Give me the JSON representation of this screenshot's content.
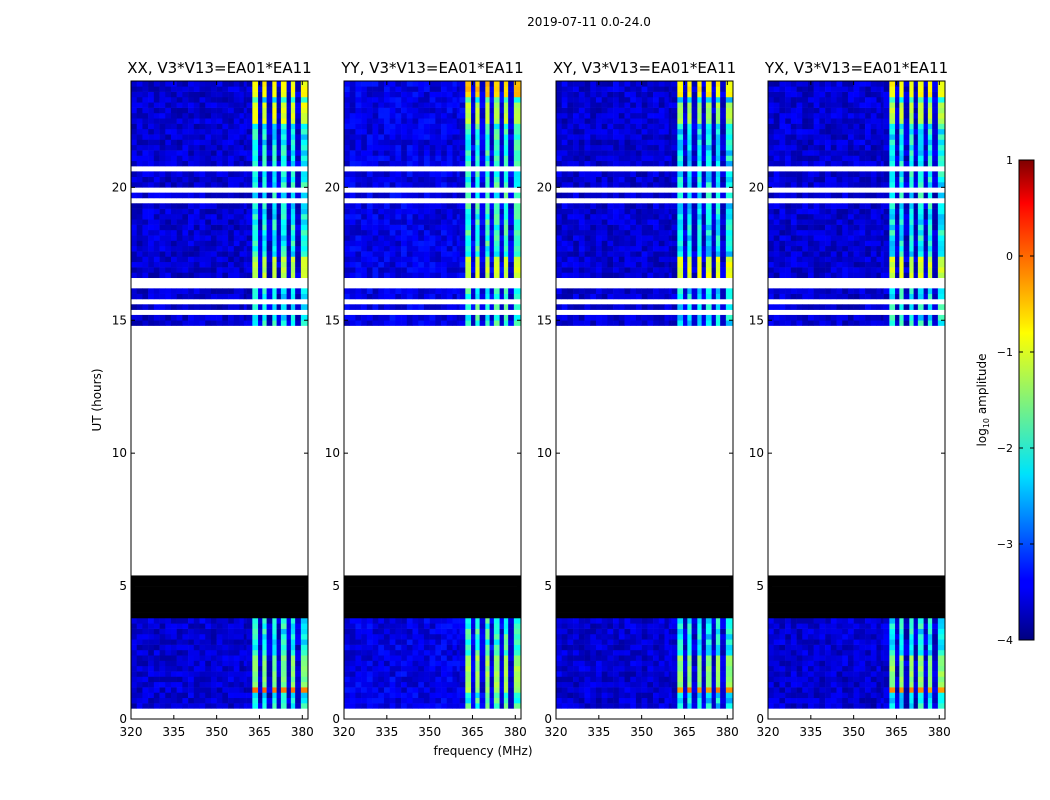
{
  "suptitle": "2019-07-11 0.0-24.0",
  "shared": {
    "xlabel": "frequency (MHz)",
    "ylabel": "UT (hours)",
    "xlim": [
      320,
      382
    ],
    "ylim": [
      0,
      24
    ],
    "xticks": [
      320,
      335,
      350,
      365,
      380
    ],
    "yticks": [
      0,
      5,
      10,
      15,
      20
    ],
    "channel_edges_mhz": [
      320,
      322,
      324,
      326,
      328,
      330,
      332,
      334,
      336,
      338,
      340,
      342,
      344,
      346,
      348,
      350,
      352,
      354,
      356,
      358,
      359.5,
      360.5,
      362.5,
      364.5,
      366,
      367.5,
      369.5,
      371,
      372.5,
      374.5,
      376,
      377.5,
      379.5,
      382
    ],
    "flagged_rows_ut": [
      [
        0.08,
        0.12
      ],
      [
        0.3,
        0.36
      ],
      [
        0.52,
        0.58
      ],
      [
        0.72,
        0.78
      ],
      [
        1.0,
        1.06
      ],
      [
        1.32,
        1.48
      ],
      [
        1.98,
        2.04
      ],
      [
        2.38,
        2.46
      ],
      [
        2.58,
        2.64
      ],
      [
        2.92,
        2.98
      ],
      [
        3.12,
        3.18
      ],
      [
        3.32,
        3.38
      ],
      [
        3.55,
        3.61
      ],
      [
        3.78,
        3.84
      ],
      [
        4.38,
        4.5
      ],
      [
        5.35,
        14.75
      ],
      [
        14.93,
        15.05
      ],
      [
        15.2,
        15.38
      ],
      [
        15.62,
        15.85
      ],
      [
        16.15,
        16.5
      ],
      [
        17.3,
        17.38
      ],
      [
        17.7,
        17.78
      ],
      [
        17.98,
        18.04
      ],
      [
        18.2,
        18.26
      ],
      [
        18.75,
        18.8
      ],
      [
        19.45,
        19.6
      ],
      [
        19.85,
        20.05
      ],
      [
        20.3,
        20.45
      ],
      [
        20.68,
        20.76
      ],
      [
        21.02,
        21.08
      ],
      [
        21.32,
        21.38
      ],
      [
        21.58,
        21.64
      ],
      [
        21.96,
        22.04
      ],
      [
        22.3,
        22.42
      ],
      [
        23.4,
        23.48
      ],
      [
        23.72,
        23.86
      ]
    ],
    "black_rows_ut": [
      [
        4.5,
        5.35
      ],
      [
        3.84,
        4.38
      ]
    ],
    "rfi_time_ranges_ut": [
      [
        1.05,
        2.4
      ],
      [
        16.6,
        17.4
      ],
      [
        22.3,
        23.2
      ],
      [
        23.4,
        24.0
      ]
    ]
  },
  "colorbar": {
    "label": "log",
    "label_sub": "10",
    "label_rest": " amplitude",
    "range": [
      -4,
      1
    ],
    "ticks": [
      {
        "value": 1,
        "label": "1"
      },
      {
        "value": 0,
        "label": "0"
      },
      {
        "value": -1,
        "label": "−1"
      },
      {
        "value": -2,
        "label": "−2"
      },
      {
        "value": -3,
        "label": "−3"
      },
      {
        "value": -4,
        "label": "−4"
      }
    ]
  },
  "chart_data": [
    {
      "type": "heatmap",
      "title": "XX, V3*V13=EA01*EA11",
      "background_log_amp": -3.6,
      "rfi_band_log_amp": -2.1,
      "burst_values": [
        {
          "ut_range": [
            1.05,
            1.3
          ],
          "log_amp": -0.2
        },
        {
          "ut_range": [
            1.3,
            2.4
          ],
          "log_amp": -1.5
        },
        {
          "ut_range": [
            16.6,
            17.4
          ],
          "log_amp": -1.2
        },
        {
          "ut_range": [
            22.3,
            23.2
          ],
          "log_amp": -1.0
        },
        {
          "ut_range": [
            23.4,
            24.0
          ],
          "log_amp": -0.9
        }
      ],
      "rfi_bands_mhz": [
        [
          362.5,
          364.5
        ],
        [
          366,
          367.5
        ],
        [
          369.5,
          371
        ],
        [
          372.5,
          374.5
        ],
        [
          376,
          377.5
        ],
        [
          379.5,
          381
        ]
      ]
    },
    {
      "type": "heatmap",
      "title": "YY, V3*V13=EA01*EA11",
      "background_log_amp": -3.5,
      "rfi_band_log_amp": -1.9,
      "burst_values": [
        {
          "ut_range": [
            1.05,
            2.4
          ],
          "log_amp": -1.3
        },
        {
          "ut_range": [
            16.6,
            17.4
          ],
          "log_amp": -1.1
        },
        {
          "ut_range": [
            22.3,
            23.2
          ],
          "log_amp": -1.2
        },
        {
          "ut_range": [
            23.4,
            24.0
          ],
          "log_amp": -0.6
        }
      ],
      "rfi_bands_mhz": [
        [
          362.5,
          364.5
        ],
        [
          366,
          367.5
        ],
        [
          369.5,
          371
        ],
        [
          372.5,
          374.5
        ],
        [
          376,
          377.5
        ],
        [
          379.5,
          381
        ]
      ]
    },
    {
      "type": "heatmap",
      "title": "XY, V3*V13=EA01*EA11",
      "background_log_amp": -3.6,
      "rfi_band_log_amp": -2.2,
      "burst_values": [
        {
          "ut_range": [
            1.05,
            1.3
          ],
          "log_amp": -0.3
        },
        {
          "ut_range": [
            1.3,
            2.4
          ],
          "log_amp": -1.4
        },
        {
          "ut_range": [
            16.6,
            17.4
          ],
          "log_amp": -1.0
        },
        {
          "ut_range": [
            22.3,
            23.2
          ],
          "log_amp": -1.3
        },
        {
          "ut_range": [
            23.4,
            24.0
          ],
          "log_amp": -0.8
        }
      ],
      "rfi_bands_mhz": [
        [
          362.5,
          364.5
        ],
        [
          366,
          367.5
        ],
        [
          369.5,
          371
        ],
        [
          372.5,
          374.5
        ],
        [
          376,
          377.5
        ],
        [
          379.5,
          381
        ]
      ]
    },
    {
      "type": "heatmap",
      "title": "YX, V3*V13=EA01*EA11",
      "background_log_amp": -3.6,
      "rfi_band_log_amp": -2.1,
      "burst_values": [
        {
          "ut_range": [
            1.05,
            1.3
          ],
          "log_amp": -0.4
        },
        {
          "ut_range": [
            1.3,
            2.4
          ],
          "log_amp": -1.4
        },
        {
          "ut_range": [
            16.6,
            17.4
          ],
          "log_amp": -1.1
        },
        {
          "ut_range": [
            22.3,
            23.2
          ],
          "log_amp": -1.2
        },
        {
          "ut_range": [
            23.4,
            24.0
          ],
          "log_amp": -0.9
        }
      ],
      "rfi_bands_mhz": [
        [
          362.5,
          364.5
        ],
        [
          366,
          367.5
        ],
        [
          369.5,
          371
        ],
        [
          372.5,
          374.5
        ],
        [
          376,
          377.5
        ],
        [
          379.5,
          381
        ]
      ]
    }
  ]
}
